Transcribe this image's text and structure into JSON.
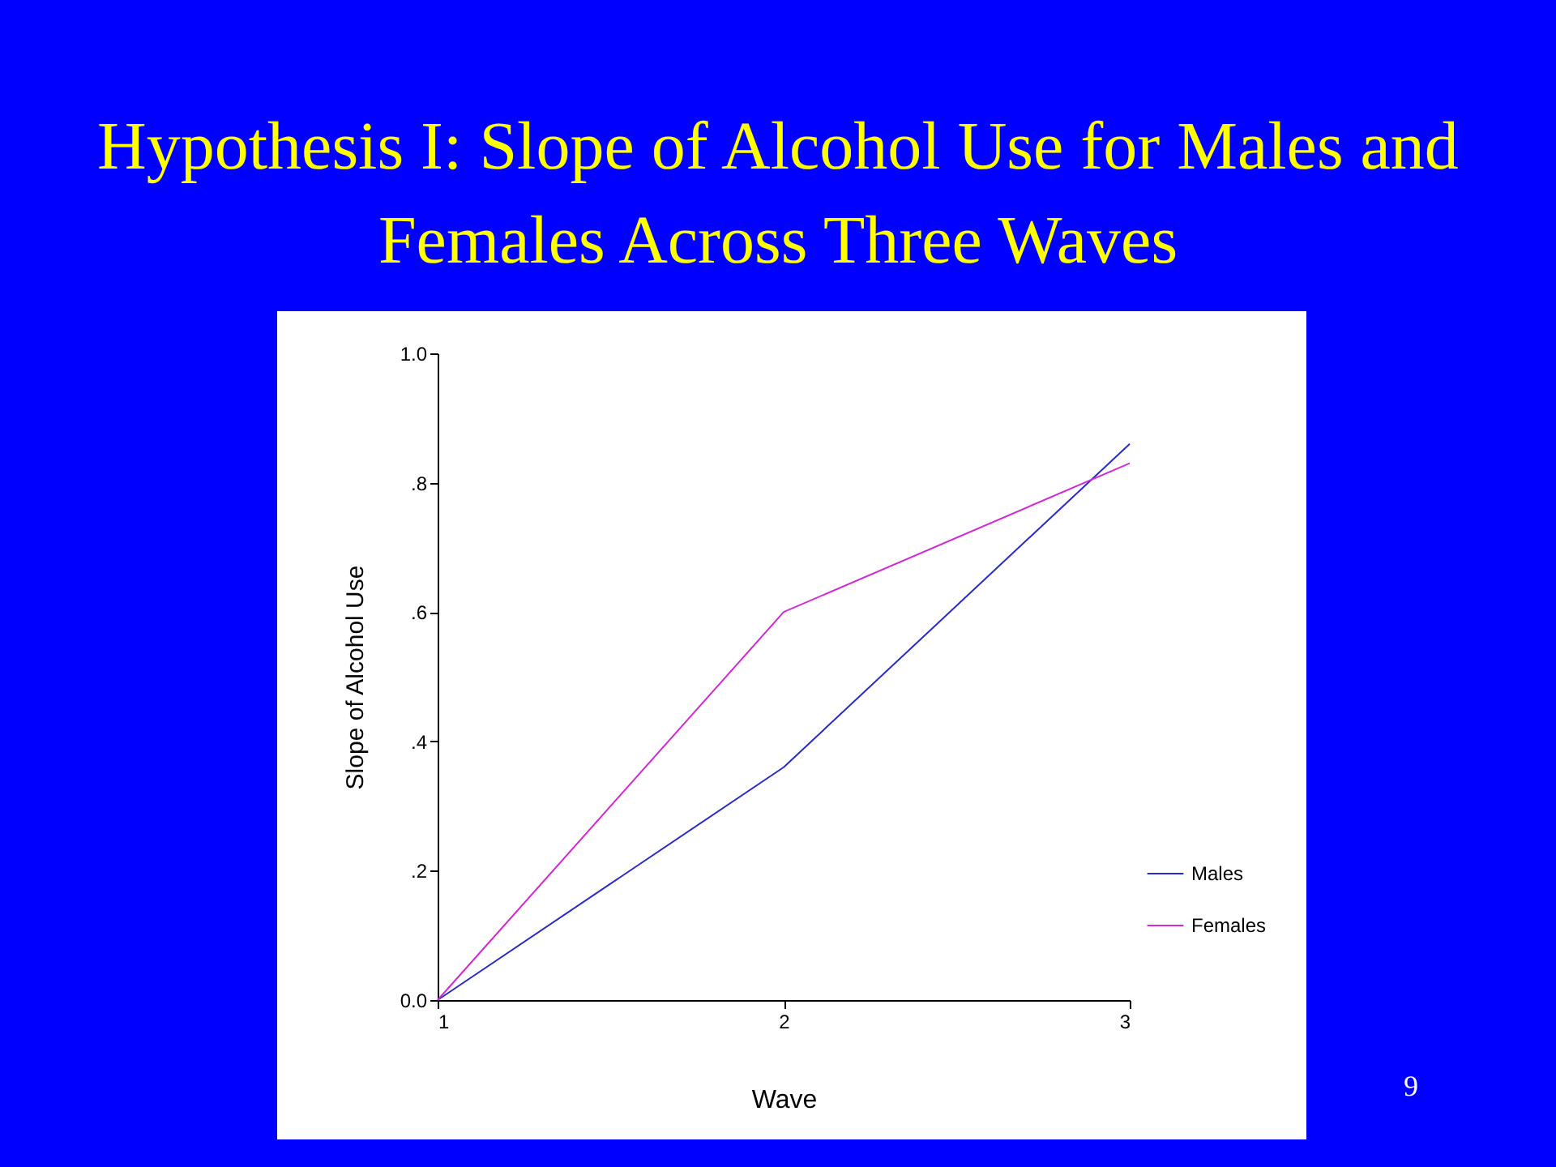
{
  "chart_data": {
    "type": "line",
    "title": "Hypothesis I: Slope of Alcohol Use for Males and Females Across Three Waves",
    "xlabel": "Wave",
    "ylabel": "Slope of Alcohol Use",
    "x": [
      1,
      2,
      3
    ],
    "series": [
      {
        "name": "Males",
        "color": "#2a2ac8",
        "values": [
          0,
          0.36,
          0.86
        ]
      },
      {
        "name": "Females",
        "color": "#d22ad2",
        "values": [
          0,
          0.6,
          0.83
        ]
      }
    ],
    "xlim": [
      1,
      3
    ],
    "xticks": [
      1,
      2,
      3
    ],
    "ylim": [
      0,
      1
    ],
    "yticks": [
      {
        "value": 0,
        "label": "0.0"
      },
      {
        "value": 0.2,
        "label": ".2"
      },
      {
        "value": 0.4,
        "label": ".4"
      },
      {
        "value": 0.6,
        "label": ".6"
      },
      {
        "value": 0.8,
        "label": ".8"
      },
      {
        "value": 1,
        "label": "1.0"
      }
    ],
    "grid": false,
    "legend": "bottom right",
    "marker": "none",
    "line_style": "solid",
    "annotations": [
      "9"
    ]
  }
}
